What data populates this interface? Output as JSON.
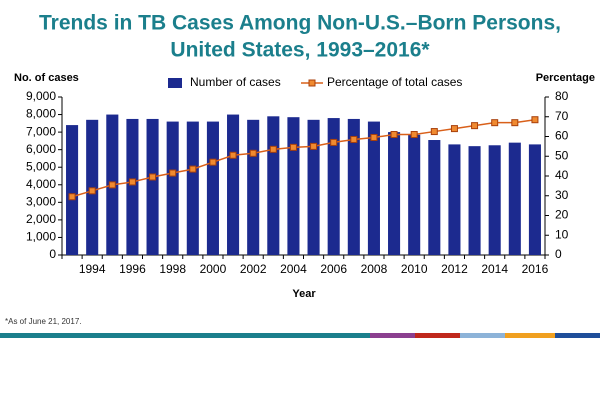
{
  "chart_data": {
    "type": "bar-line",
    "title": [
      "Trends in TB Cases Among Non-U.S.–Born Persons,",
      "United States, 1993–2016*"
    ],
    "y_label": "No. of cases",
    "y2_label": "Percentage",
    "x_label": "Year",
    "footnote": "*As of June 21, 2017.",
    "categories": [
      null,
      "1994",
      null,
      "1996",
      null,
      "1998",
      null,
      "2000",
      null,
      "2002",
      null,
      "2004",
      null,
      "2006",
      null,
      "2008",
      null,
      "2010",
      null,
      "2012",
      null,
      "2014",
      null,
      "2016"
    ],
    "series": [
      {
        "name": "Number of cases",
        "type": "bar",
        "color": "#1c2a8f",
        "axis": "y",
        "values": [
          7400,
          7700,
          8000,
          7750,
          7750,
          7600,
          7600,
          7600,
          8000,
          7700,
          7900,
          7850,
          7700,
          7800,
          7750,
          7600,
          7000,
          6850,
          6550,
          6300,
          6200,
          6250,
          6400,
          6300
        ]
      },
      {
        "name": "Percentage of total cases",
        "type": "line",
        "color": "#d9601a",
        "axis": "y2",
        "values": [
          29.5,
          32.5,
          35.5,
          37,
          39.5,
          41.5,
          43.5,
          47,
          50.5,
          51.5,
          53.5,
          54.5,
          55,
          57,
          58.5,
          59.5,
          61,
          61,
          62.5,
          64,
          65.5,
          67,
          67,
          68.5
        ]
      }
    ],
    "ylim": [
      0,
      9000
    ],
    "yticks": [
      0,
      {
        "value": 1000,
        "label": "1,000"
      },
      {
        "value": 2000,
        "label": "2,000"
      },
      {
        "value": 3000,
        "label": "3,000"
      },
      {
        "value": 4000,
        "label": "4,000"
      },
      {
        "value": 5000,
        "label": "5,000"
      },
      {
        "value": 6000,
        "label": "6,000"
      },
      {
        "value": 7000,
        "label": "7,000"
      },
      {
        "value": 8000,
        "label": "8,000"
      },
      {
        "value": 9000,
        "label": "9,000"
      }
    ],
    "y2lim": [
      0,
      80
    ],
    "y2ticks": [
      0,
      10,
      20,
      30,
      40,
      50,
      60,
      70,
      80
    ]
  }
}
